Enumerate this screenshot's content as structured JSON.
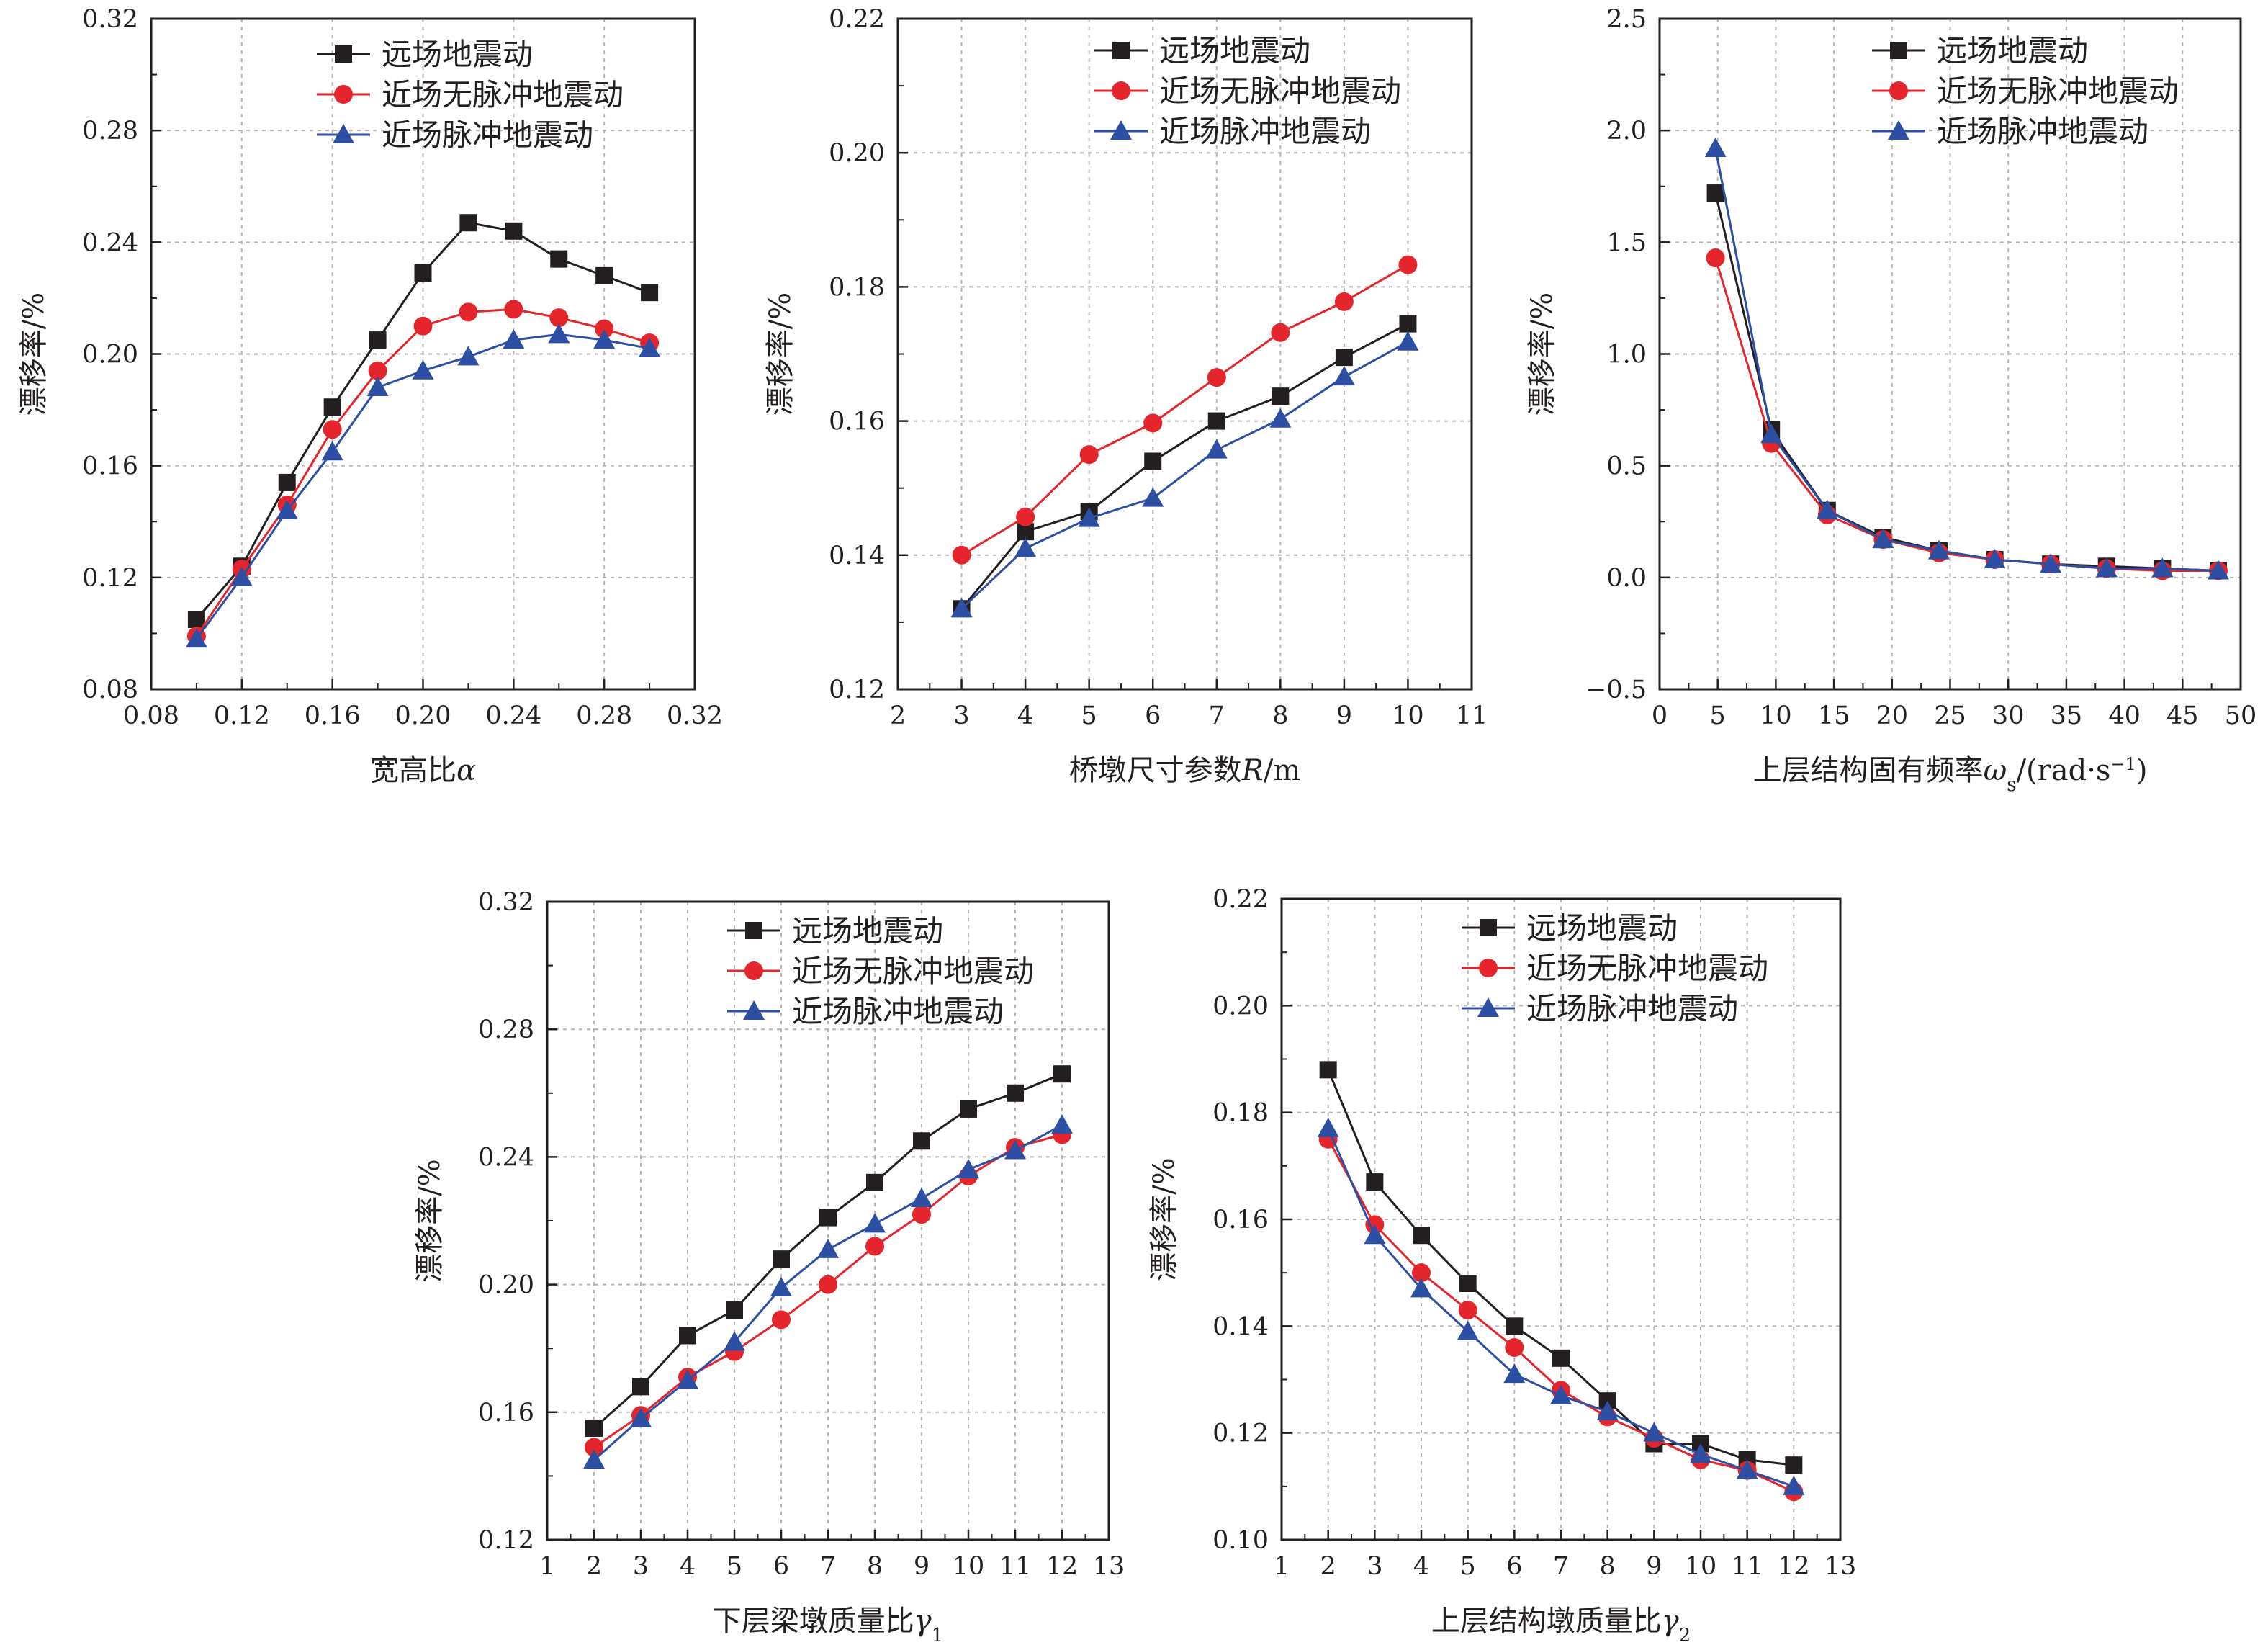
{
  "legend_labels": [
    "远场地震动",
    "近场无脉冲地震动",
    "近场脉冲地震动"
  ],
  "chart_data": [
    {
      "type": "line",
      "xlabel": "宽高比α",
      "ylabel": "漂移率/%",
      "xlim": [
        0.08,
        0.32
      ],
      "ylim": [
        0.08,
        0.32
      ],
      "xticks": [
        "0.08",
        "0.12",
        "0.16",
        "0.20",
        "0.24",
        "0.28",
        "0.32"
      ],
      "yticks": [
        "0.08",
        "0.12",
        "0.16",
        "0.20",
        "0.24",
        "0.28",
        "0.32"
      ],
      "grid": true,
      "legend_position": "top-right",
      "x": [
        0.1,
        0.12,
        0.14,
        0.16,
        0.18,
        0.2,
        0.22,
        0.24,
        0.26,
        0.28,
        0.3
      ],
      "series": [
        {
          "name": "远场地震动",
          "color": "#231f20",
          "marker": "square",
          "values": [
            0.105,
            0.124,
            0.154,
            0.181,
            0.205,
            0.229,
            0.247,
            0.244,
            0.234,
            0.228,
            0.222
          ]
        },
        {
          "name": "近场无脉冲地震动",
          "color": "#e4262c",
          "marker": "circle",
          "values": [
            0.099,
            0.123,
            0.146,
            0.173,
            0.194,
            0.21,
            0.215,
            0.216,
            0.213,
            0.209,
            0.204
          ]
        },
        {
          "name": "近场脉冲地震动",
          "color": "#2c4fa3",
          "marker": "triangle",
          "values": [
            0.098,
            0.12,
            0.144,
            0.165,
            0.188,
            0.194,
            0.199,
            0.205,
            0.207,
            0.205,
            0.202
          ]
        }
      ]
    },
    {
      "type": "line",
      "xlabel": "桥墩尺寸参数R/m",
      "ylabel": "漂移率/%",
      "xlim": [
        2,
        11
      ],
      "ylim": [
        0.12,
        0.22
      ],
      "xticks": [
        "2",
        "3",
        "4",
        "5",
        "6",
        "7",
        "8",
        "9",
        "10",
        "11"
      ],
      "yticks": [
        "0.12",
        "0.14",
        "0.16",
        "0.18",
        "0.20",
        "0.22"
      ],
      "grid": true,
      "legend_position": "top-right",
      "x": [
        3,
        4,
        5,
        6,
        7,
        8,
        9,
        10
      ],
      "series": [
        {
          "name": "远场地震动",
          "color": "#231f20",
          "marker": "square",
          "values": [
            0.132,
            0.1435,
            0.1465,
            0.154,
            0.16,
            0.1637,
            0.1695,
            0.1745
          ]
        },
        {
          "name": "近场无脉冲地震动",
          "color": "#e4262c",
          "marker": "circle",
          "values": [
            0.14,
            0.1457,
            0.155,
            0.1597,
            0.1665,
            0.1732,
            0.1778,
            0.1833
          ]
        },
        {
          "name": "近场脉冲地震动",
          "color": "#2c4fa3",
          "marker": "triangle",
          "values": [
            0.132,
            0.141,
            0.1455,
            0.1485,
            0.1557,
            0.1603,
            0.1666,
            0.1718
          ]
        }
      ]
    },
    {
      "type": "line",
      "xlabel": "上层结构固有频率ωs/(rad·s⁻¹)",
      "ylabel": "漂移率/%",
      "xlim": [
        0,
        52
      ],
      "ylim": [
        -0.5,
        2.5
      ],
      "xticks": [
        "0",
        "5",
        "10",
        "15",
        "20",
        "25",
        "30",
        "35",
        "40",
        "45",
        "50"
      ],
      "yticks": [
        "−0.5",
        "0.0",
        "0.5",
        "1.0",
        "1.5",
        "2.0",
        "2.5"
      ],
      "grid": true,
      "legend_position": "top-right",
      "x": [
        5,
        10,
        15,
        20,
        25,
        30,
        35,
        40,
        45,
        50
      ],
      "series": [
        {
          "name": "远场地震动",
          "color": "#231f20",
          "marker": "square",
          "values": [
            1.72,
            0.66,
            0.3,
            0.18,
            0.12,
            0.08,
            0.06,
            0.05,
            0.04,
            0.03
          ]
        },
        {
          "name": "近场无脉冲地震动",
          "color": "#e4262c",
          "marker": "circle",
          "values": [
            1.43,
            0.6,
            0.28,
            0.17,
            0.11,
            0.08,
            0.06,
            0.04,
            0.03,
            0.03
          ]
        },
        {
          "name": "近场脉冲地震动",
          "color": "#2c4fa3",
          "marker": "triangle",
          "values": [
            1.92,
            0.64,
            0.3,
            0.17,
            0.12,
            0.08,
            0.06,
            0.04,
            0.04,
            0.03
          ]
        }
      ]
    },
    {
      "type": "line",
      "xlabel": "下层梁墩质量比γ1",
      "ylabel": "漂移率/%",
      "xlim": [
        1,
        13
      ],
      "ylim": [
        0.12,
        0.32
      ],
      "xticks": [
        "1",
        "2",
        "3",
        "4",
        "5",
        "6",
        "7",
        "8",
        "9",
        "10",
        "11",
        "12",
        "13"
      ],
      "yticks": [
        "0.12",
        "0.16",
        "0.20",
        "0.24",
        "0.28",
        "0.32"
      ],
      "grid": true,
      "legend_position": "top-right",
      "x": [
        2,
        3,
        4,
        5,
        6,
        7,
        8,
        9,
        10,
        11,
        12
      ],
      "series": [
        {
          "name": "远场地震动",
          "color": "#231f20",
          "marker": "square",
          "values": [
            0.155,
            0.168,
            0.184,
            0.192,
            0.208,
            0.221,
            0.232,
            0.245,
            0.255,
            0.26,
            0.266
          ]
        },
        {
          "name": "近场无脉冲地震动",
          "color": "#e4262c",
          "marker": "circle",
          "values": [
            0.149,
            0.159,
            0.171,
            0.179,
            0.189,
            0.2,
            0.212,
            0.222,
            0.234,
            0.243,
            0.247
          ]
        },
        {
          "name": "近场脉冲地震动",
          "color": "#2c4fa3",
          "marker": "triangle",
          "values": [
            0.145,
            0.158,
            0.17,
            0.182,
            0.199,
            0.211,
            0.219,
            0.227,
            0.236,
            0.242,
            0.25
          ]
        }
      ]
    },
    {
      "type": "line",
      "xlabel": "上层结构墩质量比γ2",
      "ylabel": "漂移率/%",
      "xlim": [
        1,
        13
      ],
      "ylim": [
        0.1,
        0.22
      ],
      "xticks": [
        "1",
        "2",
        "3",
        "4",
        "5",
        "6",
        "7",
        "8",
        "9",
        "10",
        "11",
        "12",
        "13"
      ],
      "yticks": [
        "0.10",
        "0.12",
        "0.14",
        "0.16",
        "0.18",
        "0.20",
        "0.22"
      ],
      "grid": true,
      "legend_position": "top-right",
      "x": [
        2,
        3,
        4,
        5,
        6,
        7,
        8,
        9,
        10,
        11,
        12
      ],
      "series": [
        {
          "name": "远场地震动",
          "color": "#231f20",
          "marker": "square",
          "values": [
            0.188,
            0.167,
            0.157,
            0.148,
            0.14,
            0.134,
            0.126,
            0.118,
            0.118,
            0.115,
            0.114
          ]
        },
        {
          "name": "近场无脉冲地震动",
          "color": "#e4262c",
          "marker": "circle",
          "values": [
            0.175,
            0.159,
            0.15,
            0.143,
            0.136,
            0.128,
            0.123,
            0.119,
            0.115,
            0.113,
            0.109
          ]
        },
        {
          "name": "近场脉冲地震动",
          "color": "#2c4fa3",
          "marker": "triangle",
          "values": [
            0.177,
            0.157,
            0.147,
            0.139,
            0.131,
            0.127,
            0.124,
            0.12,
            0.116,
            0.113,
            0.11
          ]
        }
      ]
    }
  ]
}
